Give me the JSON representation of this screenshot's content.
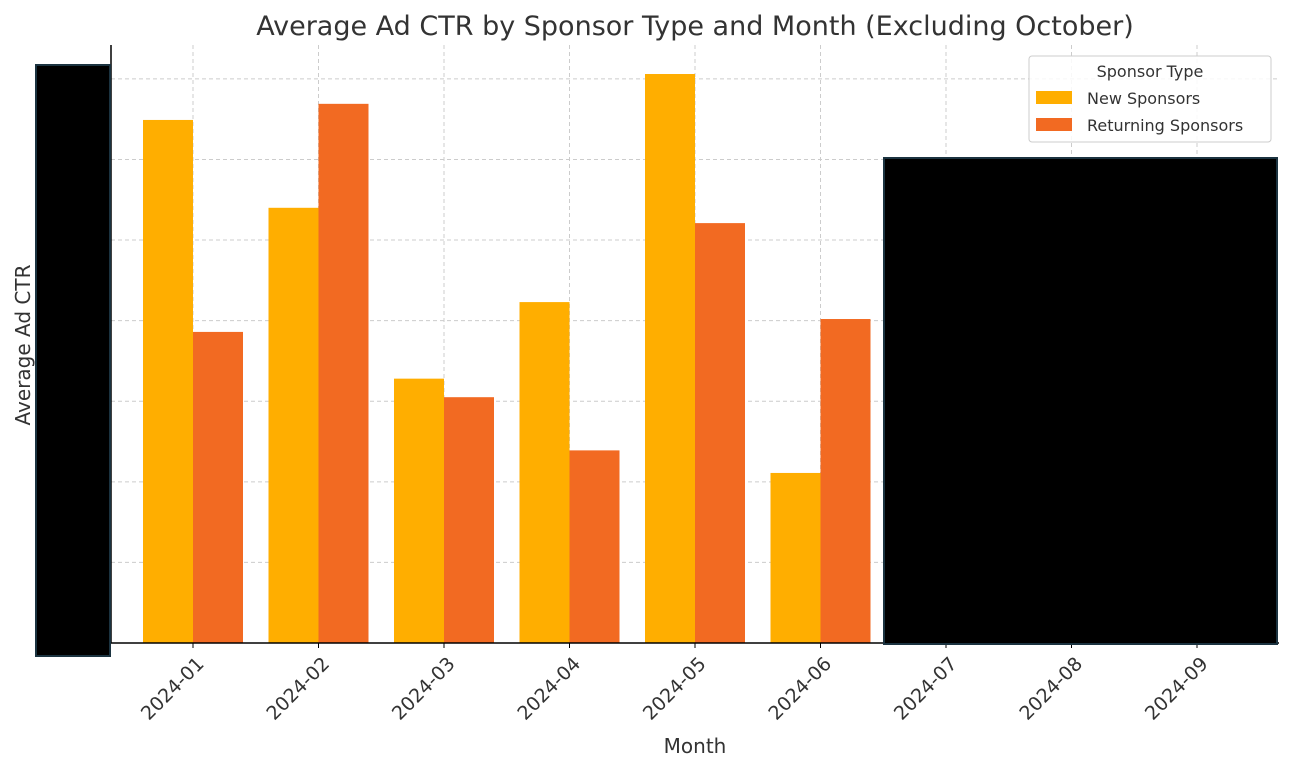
{
  "chart_data": {
    "type": "bar",
    "title": "Average Ad CTR by Sponsor Type and Month (Excluding October)",
    "xlabel": "Month",
    "ylabel": "Average Ad CTR",
    "y_units_note": "y tick labels redacted; values in gridline units",
    "ylim": [
      0,
      7.42
    ],
    "y_gridlines": [
      1,
      2,
      3,
      4,
      5,
      6,
      7
    ],
    "grid": true,
    "categories": [
      "2024-01",
      "2024-02",
      "2024-03",
      "2024-04",
      "2024-05",
      "2024-06",
      "2024-07",
      "2024-08",
      "2024-09"
    ],
    "legend": {
      "title": "Sponsor Type",
      "placement": "top-right"
    },
    "series": [
      {
        "name": "New Sponsors",
        "color": "#FFAE00",
        "values": [
          6.49,
          5.4,
          3.28,
          4.23,
          7.06,
          2.11,
          null,
          null,
          null
        ]
      },
      {
        "name": "Returning Sponsors",
        "color": "#F26A22",
        "values": [
          3.86,
          6.69,
          3.05,
          2.39,
          5.21,
          4.02,
          null,
          null,
          null
        ]
      }
    ]
  }
}
